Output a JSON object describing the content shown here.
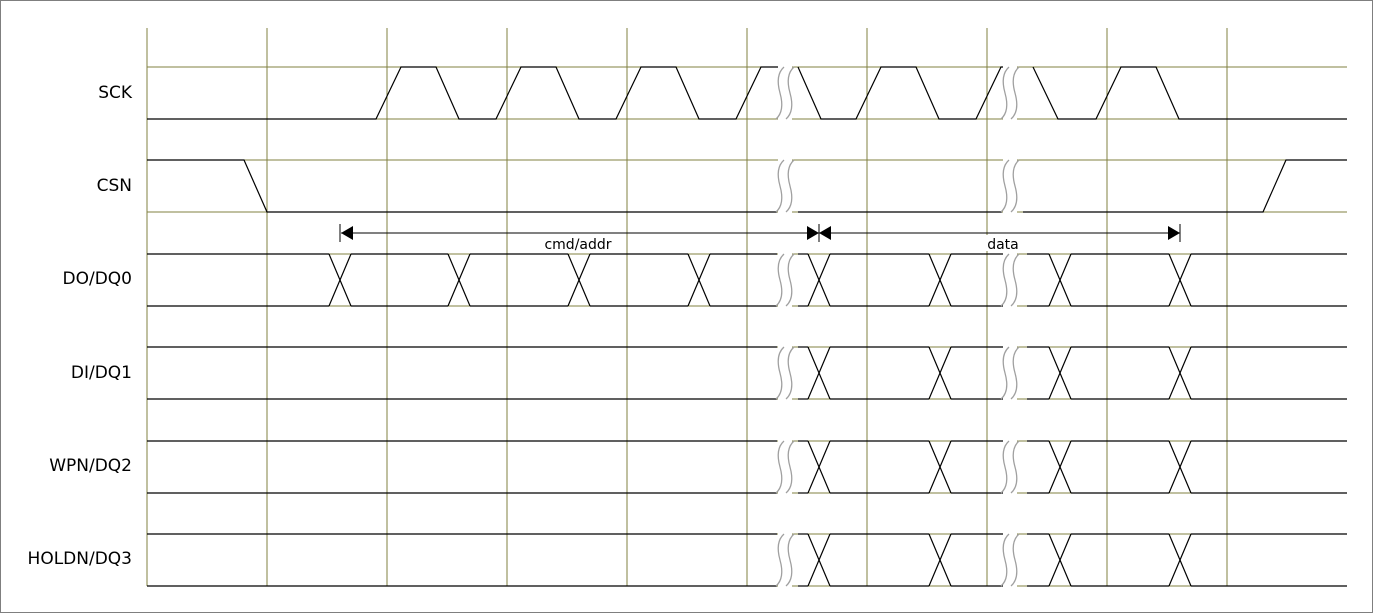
{
  "diagram": {
    "signals": [
      {
        "id": "sck",
        "label": "SCK"
      },
      {
        "id": "csn",
        "label": "CSN"
      },
      {
        "id": "do",
        "label": "DO/DQ0"
      },
      {
        "id": "di",
        "label": "DI/DQ1"
      },
      {
        "id": "wpn",
        "label": "WPN/DQ2"
      },
      {
        "id": "holdn",
        "label": "HOLDN/DQ3"
      }
    ],
    "annotations": {
      "cmd_addr": "cmd/addr",
      "data": "data"
    },
    "colors": {
      "grid": "#808040",
      "waveform": "#000000",
      "break_mark": "#a0a0a0",
      "border": "#7f7f7f"
    }
  }
}
